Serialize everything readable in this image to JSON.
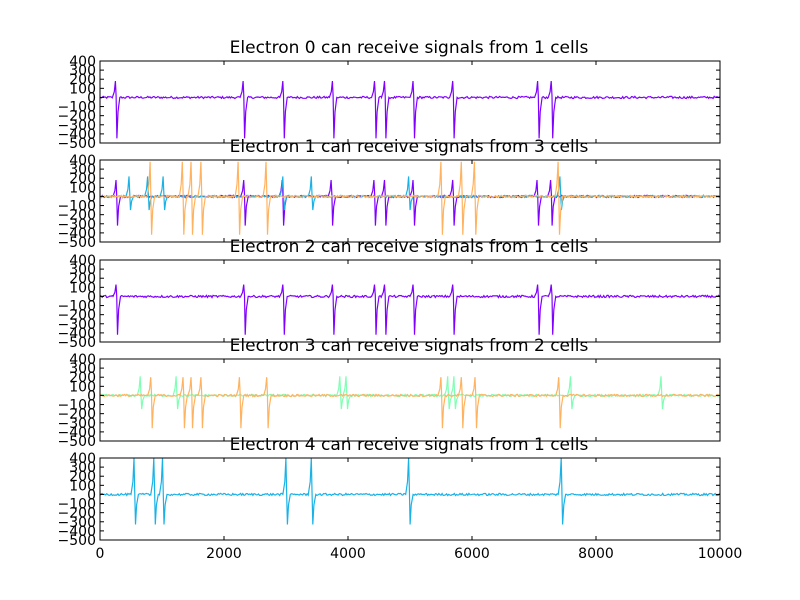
{
  "chart_data": [
    {
      "type": "line",
      "title": "Electron 0 can receive signals from 1 cells",
      "ylim": [
        -500,
        400
      ],
      "xlim": [
        0,
        10000
      ],
      "yticks": [
        "400",
        "300",
        "200",
        "100",
        "0",
        "−100",
        "−200",
        "−300",
        "−400",
        "−500"
      ],
      "xticks": [],
      "series": [
        {
          "color": "#8000ff",
          "spikes": [
            260,
            2320,
            2960,
            3760,
            4440,
            4600,
            5060,
            5700,
            7070,
            7290
          ],
          "up": 180,
          "down": -450
        }
      ]
    },
    {
      "type": "line",
      "title": "Electron 1 can receive signals from 3 cells",
      "ylim": [
        -500,
        400
      ],
      "xlim": [
        0,
        10000
      ],
      "yticks": [
        "400",
        "300",
        "200",
        "100",
        "0",
        "−100",
        "−200",
        "−300",
        "−400",
        "−500"
      ],
      "xticks": [],
      "series": [
        {
          "color": "#8000ff",
          "spikes": [
            270,
            2330,
            2950,
            3740,
            4430,
            4600,
            5060,
            5700,
            7060,
            7280
          ],
          "up": 180,
          "down": -320
        },
        {
          "color": "#1ab2e6",
          "spikes": [
            480,
            780,
            1030,
            2960,
            3420,
            4990,
            7430
          ],
          "up": 220,
          "down": -150
        },
        {
          "color": "#ffb360",
          "spikes": [
            820,
            1340,
            1480,
            1640,
            2240,
            2690,
            5510,
            5840,
            6050,
            7400
          ],
          "up": 380,
          "down": -420
        }
      ]
    },
    {
      "type": "line",
      "title": "Electron 2 can receive signals from 1 cells",
      "ylim": [
        -500,
        400
      ],
      "xlim": [
        0,
        10000
      ],
      "yticks": [
        "400",
        "300",
        "200",
        "100",
        "0",
        "−100",
        "−200",
        "−300",
        "−400",
        "−500"
      ],
      "xticks": [],
      "series": [
        {
          "color": "#8000ff",
          "spikes": [
            270,
            2330,
            2960,
            3760,
            4440,
            4600,
            5060,
            5700,
            7070,
            7290
          ],
          "up": 130,
          "down": -420
        }
      ]
    },
    {
      "type": "line",
      "title": "Electron 3 can receive signals from 2 cells",
      "ylim": [
        -500,
        400
      ],
      "xlim": [
        0,
        10000
      ],
      "yticks": [
        "400",
        "300",
        "200",
        "100",
        "0",
        "−100",
        "−200",
        "−300",
        "−400",
        "−500"
      ],
      "xticks": [],
      "series": [
        {
          "color": "#80ffb4",
          "spikes": [
            660,
            1240,
            3880,
            3980,
            5620,
            5720,
            7600,
            9060
          ],
          "up": 210,
          "down": -150
        },
        {
          "color": "#ffb360",
          "spikes": [
            830,
            1350,
            1480,
            1640,
            2260,
            2700,
            5510,
            5840,
            6060,
            7410
          ],
          "up": 200,
          "down": -360
        }
      ]
    },
    {
      "type": "line",
      "title": "Electron 4 can receive signals from 1 cells",
      "ylim": [
        -500,
        400
      ],
      "xlim": [
        0,
        10000
      ],
      "yticks": [
        "400",
        "300",
        "200",
        "100",
        "0",
        "−100",
        "−200",
        "−300",
        "−400",
        "−500"
      ],
      "xticks": [
        "0",
        "2000",
        "4000",
        "6000",
        "8000",
        "10000"
      ],
      "series": [
        {
          "color": "#1ab2e6",
          "spikes": [
            560,
            880,
            1020,
            3010,
            3420,
            4990,
            7450
          ],
          "up": 400,
          "down": -330
        }
      ]
    }
  ]
}
